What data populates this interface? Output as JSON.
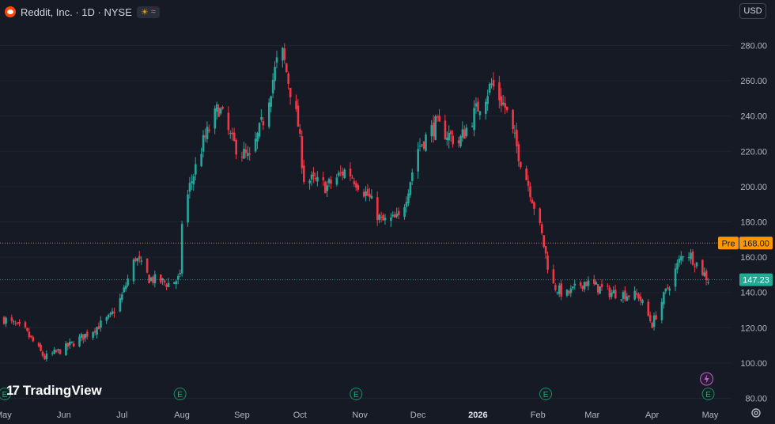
{
  "header": {
    "symbol": "Reddit, Inc. · 1D · NYSE",
    "sun_icon": "sun-icon",
    "wave_icon": "wave-icon"
  },
  "currency_label": "USD",
  "brand": {
    "name": "TradingView",
    "mark": "17"
  },
  "colors": {
    "background": "#161a25",
    "up": "#26a69a",
    "down": "#f23645",
    "pre_badge": "#ff9800",
    "last_badge": "#22ab94",
    "event_icon": "#1c8a6e",
    "dividend_icon": "#c45ad6"
  },
  "chart_data": {
    "type": "candlestick",
    "title": "Reddit, Inc. · 1D · NYSE",
    "currency": "USD",
    "ylim": [
      80,
      287
    ],
    "y_ticks": [
      "280.00",
      "260.00",
      "240.00",
      "220.00",
      "200.00",
      "180.00",
      "160.00",
      "140.00",
      "120.00",
      "100.00",
      "80.00"
    ],
    "y_tick_values": [
      280,
      260,
      240,
      220,
      200,
      180,
      160,
      140,
      120,
      100,
      80
    ],
    "x_ticks": [
      {
        "label": "May",
        "date": "2025-05-01",
        "bold": false
      },
      {
        "label": "Jun",
        "date": "2025-06-01",
        "bold": false
      },
      {
        "label": "Jul",
        "date": "2025-07-01",
        "bold": false
      },
      {
        "label": "Aug",
        "date": "2025-08-01",
        "bold": false
      },
      {
        "label": "Sep",
        "date": "2025-09-01",
        "bold": false
      },
      {
        "label": "Oct",
        "date": "2025-10-01",
        "bold": false
      },
      {
        "label": "Nov",
        "date": "2025-11-01",
        "bold": false
      },
      {
        "label": "Dec",
        "date": "2025-12-01",
        "bold": false
      },
      {
        "label": "2026",
        "date": "2026-01-01",
        "bold": true
      },
      {
        "label": "Feb",
        "date": "2026-02-01",
        "bold": false
      },
      {
        "label": "Mar",
        "date": "2026-03-01",
        "bold": false
      },
      {
        "label": "Apr",
        "date": "2026-04-01",
        "bold": false
      },
      {
        "label": "May",
        "date": "2026-05-01",
        "bold": false
      }
    ],
    "price_lines": [
      {
        "label": "Pre",
        "value": 168.0,
        "value_text": "168.00",
        "color": "#ff9800"
      },
      {
        "label": "",
        "value": 147.23,
        "value_text": "147.23",
        "color": "#22ab94"
      }
    ],
    "events": [
      {
        "label": "E",
        "date": "2025-05-01"
      },
      {
        "label": "E",
        "date": "2025-07-31"
      },
      {
        "label": "E",
        "date": "2025-10-30"
      },
      {
        "label": "E",
        "date": "2026-02-05"
      },
      {
        "label": "E",
        "date": "2026-04-30"
      }
    ],
    "dividend_event": {
      "date": "2026-04-30",
      "icon": "lightning-icon"
    },
    "anchors": [
      [
        "2025-05-01",
        125
      ],
      [
        "2025-05-12",
        118
      ],
      [
        "2025-05-22",
        103
      ],
      [
        "2025-06-01",
        108
      ],
      [
        "2025-06-15",
        118
      ],
      [
        "2025-06-25",
        126
      ],
      [
        "2025-07-01",
        138
      ],
      [
        "2025-07-08",
        160
      ],
      [
        "2025-07-15",
        148
      ],
      [
        "2025-07-25",
        145
      ],
      [
        "2025-07-31",
        148
      ],
      [
        "2025-08-01",
        180
      ],
      [
        "2025-08-05",
        200
      ],
      [
        "2025-08-12",
        225
      ],
      [
        "2025-08-20",
        245
      ],
      [
        "2025-08-27",
        225
      ],
      [
        "2025-09-05",
        215
      ],
      [
        "2025-09-12",
        238
      ],
      [
        "2025-09-19",
        270
      ],
      [
        "2025-09-22",
        275
      ],
      [
        "2025-09-30",
        235
      ],
      [
        "2025-10-03",
        205
      ],
      [
        "2025-10-15",
        200
      ],
      [
        "2025-10-25",
        210
      ],
      [
        "2025-11-05",
        195
      ],
      [
        "2025-11-12",
        180
      ],
      [
        "2025-11-22",
        182
      ],
      [
        "2025-12-01",
        222
      ],
      [
        "2025-12-10",
        235
      ],
      [
        "2025-12-22",
        225
      ],
      [
        "2026-01-01",
        245
      ],
      [
        "2026-01-08",
        258
      ],
      [
        "2026-01-15",
        245
      ],
      [
        "2026-01-23",
        215
      ],
      [
        "2026-01-28",
        198
      ],
      [
        "2026-02-03",
        172
      ],
      [
        "2026-02-08",
        145
      ],
      [
        "2026-02-15",
        138
      ],
      [
        "2026-02-25",
        146
      ],
      [
        "2026-03-10",
        140
      ],
      [
        "2026-03-25",
        138
      ],
      [
        "2026-04-01",
        122
      ],
      [
        "2026-04-08",
        140
      ],
      [
        "2026-04-18",
        165
      ],
      [
        "2026-04-25",
        155
      ],
      [
        "2026-04-30",
        147.23
      ]
    ]
  }
}
